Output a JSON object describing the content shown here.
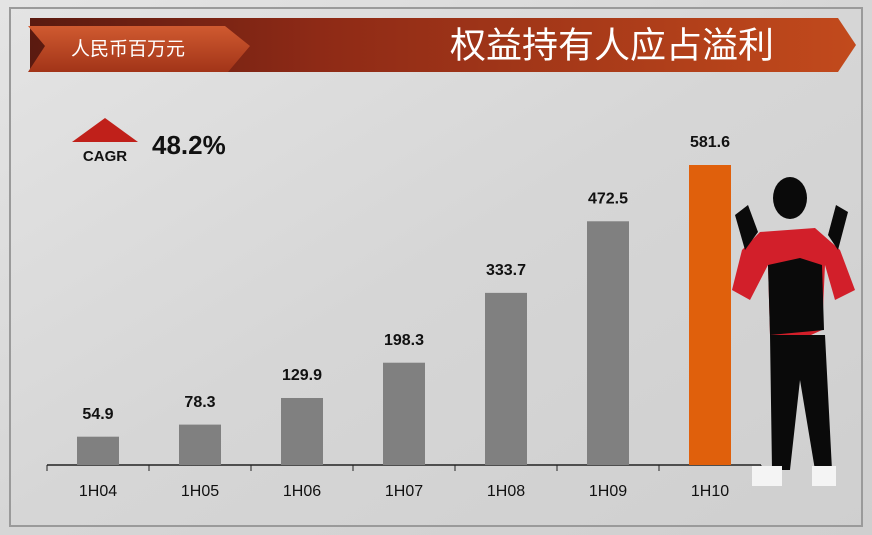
{
  "chart_data": {
    "type": "bar",
    "title": "权益持有人应占溢利",
    "unit_label": "人民币百万元",
    "annotation": {
      "label": "CAGR",
      "value": "48.2%"
    },
    "categories": [
      "1H04",
      "1H05",
      "1H06",
      "1H07",
      "1H08",
      "1H09",
      "1H10"
    ],
    "values": [
      54.9,
      78.3,
      129.9,
      198.3,
      333.7,
      472.5,
      581.6
    ],
    "colors": [
      "#808080",
      "#808080",
      "#808080",
      "#808080",
      "#808080",
      "#808080",
      "#e0600c"
    ]
  }
}
